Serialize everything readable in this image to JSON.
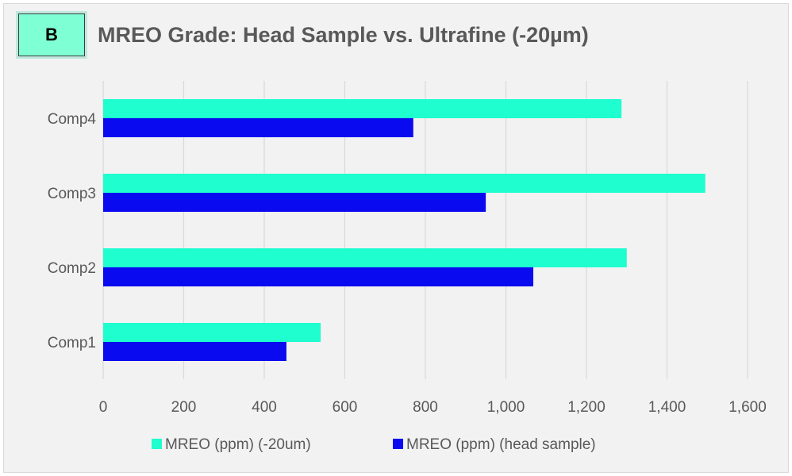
{
  "panel_label": "B",
  "chart_data": {
    "type": "bar",
    "orientation": "horizontal",
    "title": "MREO Grade: Head Sample vs. Ultrafine (-20µm)",
    "xlabel": "",
    "ylabel": "",
    "categories": [
      "Comp1",
      "Comp2",
      "Comp3",
      "Comp4"
    ],
    "series": [
      {
        "name": "MREO (ppm) (-20um)",
        "color": "#1efecf",
        "values": [
          540,
          1300,
          1495,
          1287
        ]
      },
      {
        "name": "MREO (ppm) (head sample)",
        "color": "#0a0af0",
        "values": [
          455,
          1068,
          950,
          770
        ]
      }
    ],
    "xlim": [
      0,
      1600
    ],
    "x_ticks": [
      0,
      200,
      400,
      600,
      800,
      1000,
      1200,
      1400,
      1600
    ],
    "x_tick_labels": [
      "0",
      "200",
      "400",
      "600",
      "800",
      "1,000",
      "1,200",
      "1,400",
      "1,600"
    ],
    "grid": true,
    "legend_position": "bottom",
    "colors": {
      "background": "#f2f2f2",
      "gridline": "#d9d9d9",
      "axis_text": "#595959",
      "badge_fill": "#7fffd4"
    }
  }
}
